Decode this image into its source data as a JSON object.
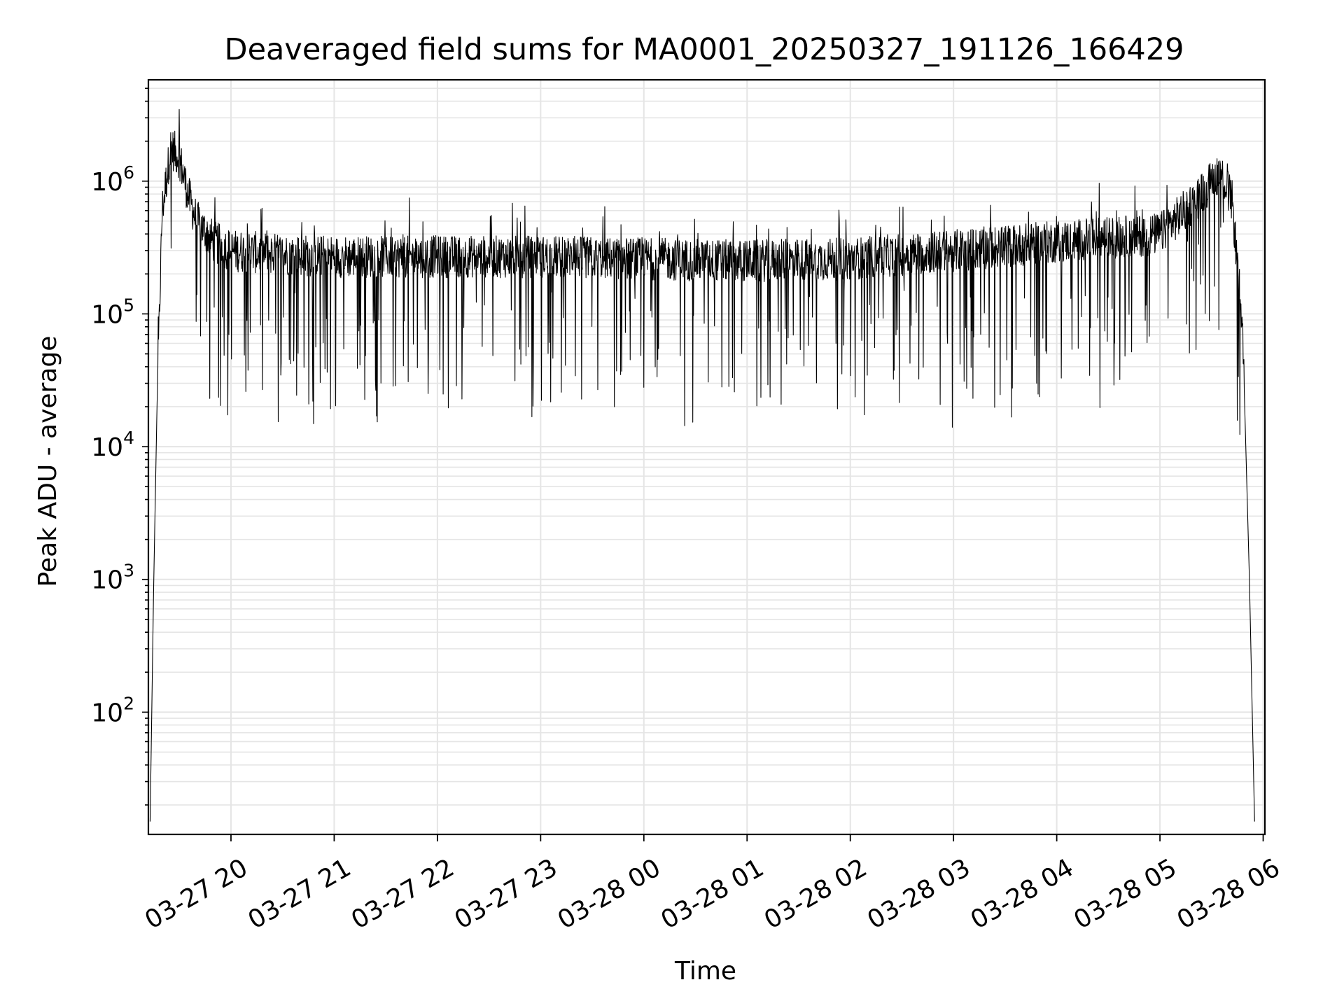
{
  "chart_data": {
    "type": "line",
    "title": "Deaveraged field sums for MA0001_20250327_191126_166429",
    "xlabel": "Time",
    "ylabel": "Peak ADU - average",
    "y_scale": "log",
    "ylim": [
      12,
      5800000
    ],
    "xlim": [
      "2025-03-27 19:12",
      "2025-03-28 06:01"
    ],
    "grid": true,
    "grid_color": "#e5e5e5",
    "line_color": "#000000",
    "x_ticks": [
      {
        "time": "2025-03-27 20:00",
        "label": "03-27 20"
      },
      {
        "time": "2025-03-27 21:00",
        "label": "03-27 21"
      },
      {
        "time": "2025-03-27 22:00",
        "label": "03-27 22"
      },
      {
        "time": "2025-03-27 23:00",
        "label": "03-27 23"
      },
      {
        "time": "2025-03-28 00:00",
        "label": "03-28 00"
      },
      {
        "time": "2025-03-28 01:00",
        "label": "03-28 01"
      },
      {
        "time": "2025-03-28 02:00",
        "label": "03-28 02"
      },
      {
        "time": "2025-03-28 03:00",
        "label": "03-28 03"
      },
      {
        "time": "2025-03-28 04:00",
        "label": "03-28 04"
      },
      {
        "time": "2025-03-28 05:00",
        "label": "03-28 05"
      },
      {
        "time": "2025-03-28 06:00",
        "label": "03-28 06"
      }
    ],
    "y_ticks": [
      {
        "value": 100,
        "base": "10",
        "exp": "2"
      },
      {
        "value": 1000,
        "base": "10",
        "exp": "3"
      },
      {
        "value": 10000,
        "base": "10",
        "exp": "4"
      },
      {
        "value": 100000,
        "base": "10",
        "exp": "5"
      },
      {
        "value": 1000000,
        "base": "10",
        "exp": "6"
      }
    ],
    "series": [
      {
        "x": [
          "2025-03-27 19:13",
          "2025-03-27 19:15",
          "2025-03-27 19:17",
          "2025-03-27 19:20",
          "2025-03-27 19:25",
          "2025-03-27 19:30",
          "2025-03-27 19:35",
          "2025-03-27 19:40",
          "2025-03-27 19:50",
          "2025-03-27 20:00",
          "2025-03-27 20:30",
          "2025-03-27 21:00",
          "2025-03-27 22:00",
          "2025-03-27 23:00",
          "2025-03-28 00:00",
          "2025-03-28 01:00",
          "2025-03-28 02:00",
          "2025-03-28 03:00",
          "2025-03-28 04:00",
          "2025-03-28 05:00",
          "2025-03-28 05:20",
          "2025-03-28 05:35",
          "2025-03-28 05:42",
          "2025-03-28 05:48",
          "2025-03-28 05:52",
          "2025-03-28 05:55"
        ],
        "y": [
          15,
          800,
          20000,
          600000,
          1800000,
          1500000,
          800000,
          500000,
          350000,
          300000,
          280000,
          270000,
          270000,
          270000,
          260000,
          250000,
          260000,
          300000,
          350000,
          400000,
          700000,
          1200000,
          700000,
          80000,
          1000,
          15
        ]
      }
    ]
  }
}
